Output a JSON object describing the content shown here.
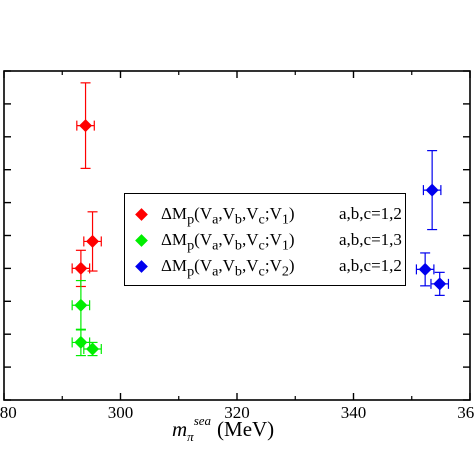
{
  "chart_data": {
    "type": "scatter",
    "title": "",
    "xlabel": {
      "base": "m",
      "sub": "π",
      "sup": "sea",
      "unit": "(MeV)"
    },
    "ylabel": "",
    "xlim": [
      280,
      360
    ],
    "ylim": [
      0,
      10
    ],
    "x_ticks": [
      280,
      300,
      320,
      340,
      360
    ],
    "x_tick_labels": [
      "280",
      "300",
      "320",
      "340",
      "360"
    ],
    "grid": false,
    "legend_placement": "center",
    "series": [
      {
        "name": "ΔMp(Va,Vb,Vc;V1) a,b,c=1,2",
        "label_main": "ΔM",
        "label_sub": "p",
        "label_args": [
          "V",
          "a",
          "V",
          "b",
          "V",
          "c",
          "V",
          "1"
        ],
        "label_cond": "a,b,c=1,2",
        "color": "#ff0000",
        "points": [
          {
            "x": 294,
            "y": 8.34,
            "xerr": 1.5,
            "yerr": 1.3
          },
          {
            "x": 295.2,
            "y": 4.82,
            "xerr": 1.5,
            "yerr": 0.9
          },
          {
            "x": 293.2,
            "y": 4.0,
            "xerr": 1.5,
            "yerr": 0.55
          }
        ]
      },
      {
        "name": "ΔMp(Va,Vb,Vc;V1) a,b,c=1,3",
        "label_main": "ΔM",
        "label_sub": "p",
        "label_args": [
          "V",
          "a",
          "V",
          "b",
          "V",
          "c",
          "V",
          "1"
        ],
        "label_cond": "a,b,c=1,3",
        "color": "#00ee00",
        "points": [
          {
            "x": 293.2,
            "y": 2.88,
            "xerr": 1.5,
            "yerr": 0.75
          },
          {
            "x": 293.2,
            "y": 1.75,
            "xerr": 1.5,
            "yerr": 0.4
          },
          {
            "x": 295.2,
            "y": 1.55,
            "xerr": 1.5,
            "yerr": 0.2
          }
        ]
      },
      {
        "name": "ΔMp(Va,Vb,Vc;V2) a,b,c=1,2",
        "label_main": "ΔM",
        "label_sub": "p",
        "label_args": [
          "V",
          "a",
          "V",
          "b",
          "V",
          "c",
          "V",
          "2"
        ],
        "label_cond": "a,b,c=1,2",
        "color": "#0000ee",
        "points": [
          {
            "x": 353.5,
            "y": 6.38,
            "xerr": 1.5,
            "yerr": 1.2
          },
          {
            "x": 352.3,
            "y": 3.97,
            "xerr": 1.5,
            "yerr": 0.5
          },
          {
            "x": 354.8,
            "y": 3.53,
            "xerr": 1.5,
            "yerr": 0.35
          }
        ]
      }
    ]
  }
}
